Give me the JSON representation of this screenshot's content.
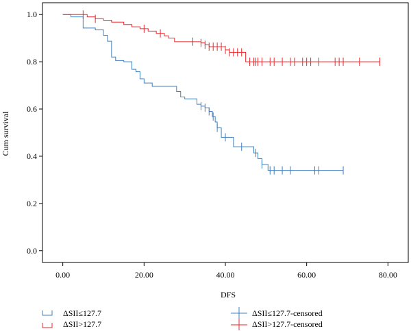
{
  "chart_data": {
    "type": "line",
    "title": "",
    "xlabel": "DFS",
    "ylabel": "Cum survival",
    "xlim": [
      -5,
      85
    ],
    "ylim": [
      -0.05,
      1.05
    ],
    "x_ticks": [
      0,
      20,
      40,
      60,
      80
    ],
    "x_tick_labels": [
      "0.00",
      "20.00",
      "40.00",
      "60.00",
      "80.00"
    ],
    "y_ticks": [
      0,
      0.2,
      0.4,
      0.6,
      0.8,
      1.0
    ],
    "y_tick_labels": [
      "0.0",
      "0.2",
      "0.4",
      "0.6",
      "0.8",
      "1.0"
    ],
    "grid": false,
    "legend_position": "bottom",
    "colors": {
      "low": "#3f7fbf",
      "high": "#e8262b",
      "axis": "#000000"
    },
    "series": [
      {
        "name": "ΔSII≤127.7",
        "color": "#3f7fbf",
        "steps": [
          [
            0,
            1.0
          ],
          [
            2,
            0.99
          ],
          [
            5,
            0.943
          ],
          [
            8,
            0.935
          ],
          [
            10,
            0.912
          ],
          [
            11,
            0.887
          ],
          [
            12,
            0.82
          ],
          [
            13,
            0.805
          ],
          [
            15,
            0.8
          ],
          [
            17,
            0.768
          ],
          [
            18,
            0.758
          ],
          [
            19,
            0.728
          ],
          [
            20,
            0.71
          ],
          [
            22,
            0.696
          ],
          [
            28,
            0.674
          ],
          [
            29,
            0.651
          ],
          [
            30,
            0.643
          ],
          [
            33,
            0.62
          ],
          [
            34,
            0.612
          ],
          [
            35,
            0.605
          ],
          [
            36,
            0.59
          ],
          [
            36.8,
            0.568
          ],
          [
            37.5,
            0.545
          ],
          [
            38,
            0.52
          ],
          [
            39,
            0.48
          ],
          [
            42,
            0.44
          ],
          [
            47,
            0.414
          ],
          [
            48,
            0.39
          ],
          [
            49,
            0.365
          ],
          [
            50.5,
            0.34
          ],
          [
            69,
            0.34
          ]
        ],
        "censored_x": [
          34,
          35,
          36,
          37,
          38,
          40,
          44,
          47.5,
          49,
          51,
          52,
          54,
          56,
          62,
          63,
          69
        ]
      },
      {
        "name": "ΔSII>127.7",
        "color": "#e8262b",
        "steps": [
          [
            0,
            1.0
          ],
          [
            6,
            0.99
          ],
          [
            8,
            0.982
          ],
          [
            10,
            0.976
          ],
          [
            12,
            0.968
          ],
          [
            15,
            0.958
          ],
          [
            17,
            0.948
          ],
          [
            19,
            0.94
          ],
          [
            21,
            0.93
          ],
          [
            23,
            0.92
          ],
          [
            25,
            0.91
          ],
          [
            26,
            0.9
          ],
          [
            27.5,
            0.885
          ],
          [
            34,
            0.88
          ],
          [
            35,
            0.872
          ],
          [
            36,
            0.864
          ],
          [
            40,
            0.85
          ],
          [
            41,
            0.84
          ],
          [
            45,
            0.8
          ],
          [
            78,
            0.8
          ]
        ],
        "censored_x": [
          5,
          8,
          20,
          24,
          32,
          34,
          35,
          36,
          37,
          38,
          39,
          40,
          41,
          42,
          43,
          44,
          46,
          47,
          47.5,
          48,
          49,
          51,
          52,
          54,
          56,
          57,
          59,
          60,
          61,
          63,
          67,
          68,
          69,
          73,
          78
        ]
      }
    ],
    "legend": {
      "low": "ΔSII≤127.7",
      "high": "ΔSII>127.7",
      "low_censored": "ΔSII≤127.7-censored",
      "high_censored": "ΔSII>127.7-censored"
    }
  }
}
